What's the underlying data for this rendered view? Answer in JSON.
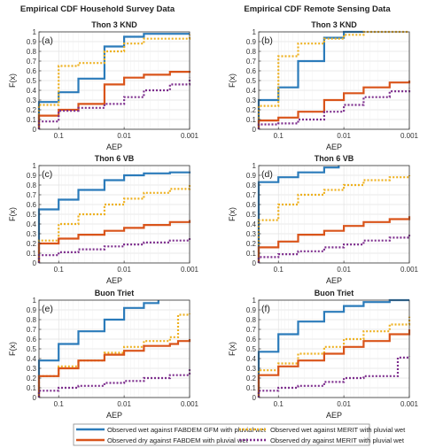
{
  "column_titles": [
    "Empirical CDF Household Survey Data",
    "Empirical CDF Remote Sensing Data"
  ],
  "colors": {
    "blue": "#2b7bba",
    "orange": "#d9541a",
    "yellow": "#eeb120",
    "purple": "#7e2f8e"
  },
  "legend": [
    {
      "label": "Observed wet against FABDEM GFM with pluvial wet",
      "color": "#2b7bba",
      "style": "solid"
    },
    {
      "label": "Observed wet against MERIT with pluvial wet",
      "color": "#eeb120",
      "style": "dotted"
    },
    {
      "label": "Observed dry against FABDEM with pluvial wet",
      "color": "#d9541a",
      "style": "solid"
    },
    {
      "label": "Observed dry against MERIT with pluvial wet",
      "color": "#7e2f8e",
      "style": "dotted"
    }
  ],
  "chart_data": [
    {
      "type": "line",
      "step": true,
      "panel": "(a)",
      "title": "Thon 3 KND",
      "column": 0,
      "row": 0,
      "xlabel": "AEP",
      "ylabel": "F(x)",
      "xscale": "log",
      "xreverse": true,
      "xlim": [
        0.2,
        0.001
      ],
      "ylim": [
        0,
        1
      ],
      "grid": true,
      "xticks": [
        0.1,
        0.01,
        0.001
      ],
      "xticklabels": [
        "0.1",
        "0.01",
        "0.001"
      ],
      "yticks": [
        0,
        0.1,
        0.2,
        0.3,
        0.4,
        0.5,
        0.6,
        0.7,
        0.8,
        0.9,
        1
      ],
      "yticklabels": [
        "0",
        "0.1",
        "0.2",
        "0.3",
        "0.4",
        "0.5",
        "0.6",
        "0.7",
        "0.8",
        "0.9",
        "1"
      ],
      "series": [
        {
          "name": "Observed wet against FABDEM GFM with pluvial wet",
          "color": "#2b7bba",
          "style": "solid",
          "x": [
            0.2,
            0.1,
            0.05,
            0.02,
            0.01,
            0.005,
            0.001
          ],
          "y": [
            0.28,
            0.38,
            0.52,
            0.85,
            0.95,
            0.98,
            0.98
          ]
        },
        {
          "name": "Observed wet against MERIT with pluvial wet",
          "color": "#eeb120",
          "style": "dotted",
          "x": [
            0.2,
            0.1,
            0.05,
            0.02,
            0.01,
            0.005,
            0.001
          ],
          "y": [
            0.25,
            0.65,
            0.68,
            0.8,
            0.88,
            0.93,
            0.97
          ]
        },
        {
          "name": "Observed dry against FABDEM with pluvial wet",
          "color": "#d9541a",
          "style": "solid",
          "x": [
            0.2,
            0.1,
            0.05,
            0.02,
            0.01,
            0.005,
            0.002,
            0.001
          ],
          "y": [
            0.14,
            0.2,
            0.26,
            0.46,
            0.53,
            0.56,
            0.59,
            0.6
          ]
        },
        {
          "name": "Observed dry against MERIT with pluvial wet",
          "color": "#7e2f8e",
          "style": "dotted",
          "x": [
            0.2,
            0.1,
            0.05,
            0.02,
            0.01,
            0.005,
            0.002,
            0.001
          ],
          "y": [
            0.08,
            0.19,
            0.22,
            0.26,
            0.33,
            0.4,
            0.46,
            0.53
          ]
        }
      ]
    },
    {
      "type": "line",
      "step": true,
      "panel": "(b)",
      "title": "Thon 3 KND",
      "column": 1,
      "row": 0,
      "xlabel": "AEP",
      "ylabel": "F(x)",
      "xscale": "log",
      "xreverse": true,
      "xlim": [
        0.2,
        0.001
      ],
      "ylim": [
        0,
        1
      ],
      "grid": true,
      "xticks": [
        0.1,
        0.01,
        0.001
      ],
      "xticklabels": [
        "0.1",
        "0.01",
        "0.001"
      ],
      "yticks": [
        0,
        0.1,
        0.2,
        0.3,
        0.4,
        0.5,
        0.6,
        0.7,
        0.8,
        0.9,
        1
      ],
      "yticklabels": [
        "0",
        "0.1",
        "0.2",
        "0.3",
        "0.4",
        "0.5",
        "0.6",
        "0.7",
        "0.8",
        "0.9",
        "1"
      ],
      "series": [
        {
          "name": "Observed wet against FABDEM GFM with pluvial wet",
          "color": "#2b7bba",
          "style": "solid",
          "x": [
            0.2,
            0.1,
            0.05,
            0.02,
            0.01,
            0.005
          ],
          "y": [
            0.3,
            0.43,
            0.7,
            0.94,
            1.0,
            1.0
          ]
        },
        {
          "name": "Observed wet against MERIT with pluvial wet",
          "color": "#eeb120",
          "style": "dotted",
          "x": [
            0.2,
            0.1,
            0.05,
            0.02,
            0.01,
            0.005,
            0.002,
            0.001
          ],
          "y": [
            0.24,
            0.75,
            0.88,
            0.93,
            0.97,
            1.0,
            1.0,
            1.0
          ]
        },
        {
          "name": "Observed dry against FABDEM with pluvial wet",
          "color": "#d9541a",
          "style": "solid",
          "x": [
            0.2,
            0.1,
            0.05,
            0.02,
            0.01,
            0.005,
            0.002,
            0.001
          ],
          "y": [
            0.09,
            0.12,
            0.18,
            0.3,
            0.37,
            0.43,
            0.48,
            0.5
          ]
        },
        {
          "name": "Observed dry against MERIT with pluvial wet",
          "color": "#7e2f8e",
          "style": "dotted",
          "x": [
            0.2,
            0.1,
            0.05,
            0.02,
            0.01,
            0.005,
            0.002,
            0.001
          ],
          "y": [
            0.05,
            0.06,
            0.1,
            0.18,
            0.25,
            0.33,
            0.39,
            0.42
          ]
        }
      ]
    },
    {
      "type": "line",
      "step": true,
      "panel": "(c)",
      "title": "Thon 6 VB",
      "column": 0,
      "row": 1,
      "xlabel": "AEP",
      "ylabel": "F(x)",
      "xscale": "log",
      "xreverse": true,
      "xlim": [
        0.2,
        0.001
      ],
      "ylim": [
        0,
        1
      ],
      "grid": true,
      "xticks": [
        0.1,
        0.01,
        0.001
      ],
      "xticklabels": [
        "0.1",
        "0.01",
        "0.001"
      ],
      "yticks": [
        0,
        0.1,
        0.2,
        0.3,
        0.4,
        0.5,
        0.6,
        0.7,
        0.8,
        0.9,
        1
      ],
      "yticklabels": [
        "0",
        "0.1",
        "0.2",
        "0.3",
        "0.4",
        "0.5",
        "0.6",
        "0.7",
        "0.8",
        "0.9",
        "1"
      ],
      "series": [
        {
          "name": "Observed wet against FABDEM GFM with pluvial wet",
          "color": "#2b7bba",
          "style": "solid",
          "x": [
            0.2,
            0.1,
            0.05,
            0.02,
            0.01,
            0.005,
            0.002,
            0.001
          ],
          "y": [
            0.55,
            0.65,
            0.75,
            0.85,
            0.9,
            0.92,
            0.93,
            0.94
          ]
        },
        {
          "name": "Observed wet against MERIT with pluvial wet",
          "color": "#eeb120",
          "style": "dotted",
          "x": [
            0.2,
            0.1,
            0.05,
            0.02,
            0.01,
            0.005,
            0.002,
            0.001
          ],
          "y": [
            0.23,
            0.4,
            0.5,
            0.6,
            0.66,
            0.72,
            0.76,
            0.8
          ]
        },
        {
          "name": "Observed dry against FABDEM with pluvial wet",
          "color": "#d9541a",
          "style": "solid",
          "x": [
            0.2,
            0.1,
            0.05,
            0.02,
            0.01,
            0.005,
            0.002,
            0.001
          ],
          "y": [
            0.2,
            0.25,
            0.29,
            0.33,
            0.36,
            0.39,
            0.42,
            0.44
          ]
        },
        {
          "name": "Observed dry against MERIT with pluvial wet",
          "color": "#7e2f8e",
          "style": "dotted",
          "x": [
            0.2,
            0.1,
            0.05,
            0.02,
            0.01,
            0.005,
            0.002,
            0.001
          ],
          "y": [
            0.08,
            0.11,
            0.14,
            0.17,
            0.19,
            0.21,
            0.23,
            0.26
          ]
        }
      ]
    },
    {
      "type": "line",
      "step": true,
      "panel": "(d)",
      "title": "Thon 6 VB",
      "column": 1,
      "row": 1,
      "xlabel": "AEP",
      "ylabel": "F(x)",
      "xscale": "log",
      "xreverse": true,
      "xlim": [
        0.2,
        0.001
      ],
      "ylim": [
        0,
        1
      ],
      "grid": true,
      "xticks": [
        0.1,
        0.01,
        0.001
      ],
      "xticklabels": [
        "0.1",
        "0.01",
        "0.001"
      ],
      "yticks": [
        0,
        0.1,
        0.2,
        0.3,
        0.4,
        0.5,
        0.6,
        0.7,
        0.8,
        0.9,
        1
      ],
      "yticklabels": [
        "0",
        "0.1",
        "0.2",
        "0.3",
        "0.4",
        "0.5",
        "0.6",
        "0.7",
        "0.8",
        "0.9",
        "1"
      ],
      "series": [
        {
          "name": "Observed wet against FABDEM GFM with pluvial wet",
          "color": "#2b7bba",
          "style": "solid",
          "x": [
            0.2,
            0.1,
            0.05,
            0.02,
            0.012
          ],
          "y": [
            0.83,
            0.88,
            0.93,
            0.98,
            1.0
          ]
        },
        {
          "name": "Observed wet against MERIT with pluvial wet",
          "color": "#eeb120",
          "style": "dotted",
          "x": [
            0.2,
            0.1,
            0.05,
            0.02,
            0.01,
            0.005,
            0.002,
            0.001
          ],
          "y": [
            0.44,
            0.6,
            0.7,
            0.75,
            0.8,
            0.85,
            0.88,
            0.9
          ]
        },
        {
          "name": "Observed dry against FABDEM with pluvial wet",
          "color": "#d9541a",
          "style": "solid",
          "x": [
            0.2,
            0.1,
            0.05,
            0.02,
            0.01,
            0.005,
            0.002,
            0.001
          ],
          "y": [
            0.16,
            0.22,
            0.29,
            0.33,
            0.38,
            0.42,
            0.45,
            0.48
          ]
        },
        {
          "name": "Observed dry against MERIT with pluvial wet",
          "color": "#7e2f8e",
          "style": "dotted",
          "x": [
            0.2,
            0.1,
            0.05,
            0.02,
            0.01,
            0.005,
            0.002,
            0.001
          ],
          "y": [
            0.06,
            0.09,
            0.12,
            0.16,
            0.19,
            0.23,
            0.26,
            0.29
          ]
        }
      ]
    },
    {
      "type": "line",
      "step": true,
      "panel": "(e)",
      "title": "Buon Triet",
      "column": 0,
      "row": 2,
      "xlabel": "AEP",
      "ylabel": "F(x)",
      "xscale": "log",
      "xreverse": true,
      "xlim": [
        0.2,
        0.001
      ],
      "ylim": [
        0,
        1
      ],
      "grid": true,
      "xticks": [
        0.1,
        0.01,
        0.001
      ],
      "xticklabels": [
        "0.1",
        "0.01",
        "0.001"
      ],
      "yticks": [
        0,
        0.1,
        0.2,
        0.3,
        0.4,
        0.5,
        0.6,
        0.7,
        0.8,
        0.9,
        1
      ],
      "yticklabels": [
        "0",
        "0.1",
        "0.2",
        "0.3",
        "0.4",
        "0.5",
        "0.6",
        "0.7",
        "0.8",
        "0.9",
        "1"
      ],
      "series": [
        {
          "name": "Observed wet against FABDEM GFM with pluvial wet",
          "color": "#2b7bba",
          "style": "solid",
          "x": [
            0.2,
            0.1,
            0.05,
            0.02,
            0.01,
            0.005,
            0.003
          ],
          "y": [
            0.38,
            0.55,
            0.68,
            0.8,
            0.92,
            0.97,
            1.0
          ]
        },
        {
          "name": "Observed wet against MERIT with pluvial wet",
          "color": "#eeb120",
          "style": "dotted",
          "x": [
            0.2,
            0.1,
            0.05,
            0.02,
            0.01,
            0.005,
            0.002,
            0.0015,
            0.001
          ],
          "y": [
            0.22,
            0.32,
            0.38,
            0.46,
            0.52,
            0.58,
            0.62,
            0.85,
            0.86
          ]
        },
        {
          "name": "Observed dry against FABDEM with pluvial wet",
          "color": "#d9541a",
          "style": "solid",
          "x": [
            0.2,
            0.1,
            0.05,
            0.02,
            0.01,
            0.005,
            0.002,
            0.0015,
            0.001
          ],
          "y": [
            0.22,
            0.3,
            0.38,
            0.44,
            0.48,
            0.53,
            0.55,
            0.58,
            0.6
          ]
        },
        {
          "name": "Observed dry against MERIT with pluvial wet",
          "color": "#7e2f8e",
          "style": "dotted",
          "x": [
            0.2,
            0.1,
            0.05,
            0.02,
            0.01,
            0.005,
            0.002,
            0.001
          ],
          "y": [
            0.07,
            0.1,
            0.12,
            0.15,
            0.17,
            0.2,
            0.23,
            0.29
          ]
        }
      ]
    },
    {
      "type": "line",
      "step": true,
      "panel": "(f)",
      "title": "Buon Triet",
      "column": 1,
      "row": 2,
      "xlabel": "AEP",
      "ylabel": "F(x)",
      "xscale": "log",
      "xreverse": true,
      "xlim": [
        0.2,
        0.001
      ],
      "ylim": [
        0,
        1
      ],
      "grid": true,
      "xticks": [
        0.1,
        0.01,
        0.001
      ],
      "xticklabels": [
        "0.1",
        "0.01",
        "0.001"
      ],
      "yticks": [
        0,
        0.1,
        0.2,
        0.3,
        0.4,
        0.5,
        0.6,
        0.7,
        0.8,
        0.9,
        1
      ],
      "yticklabels": [
        "0",
        "0.1",
        "0.2",
        "0.3",
        "0.4",
        "0.5",
        "0.6",
        "0.7",
        "0.8",
        "0.9",
        "1"
      ],
      "series": [
        {
          "name": "Observed wet against FABDEM GFM with pluvial wet",
          "color": "#2b7bba",
          "style": "solid",
          "x": [
            0.2,
            0.1,
            0.05,
            0.02,
            0.01,
            0.005,
            0.002,
            0.001
          ],
          "y": [
            0.47,
            0.65,
            0.78,
            0.88,
            0.94,
            0.98,
            1.0,
            1.0
          ]
        },
        {
          "name": "Observed wet against MERIT with pluvial wet",
          "color": "#eeb120",
          "style": "dotted",
          "x": [
            0.2,
            0.1,
            0.05,
            0.02,
            0.01,
            0.005,
            0.002,
            0.001
          ],
          "y": [
            0.28,
            0.35,
            0.45,
            0.52,
            0.6,
            0.68,
            0.75,
            0.83
          ]
        },
        {
          "name": "Observed dry against FABDEM with pluvial wet",
          "color": "#d9541a",
          "style": "solid",
          "x": [
            0.2,
            0.1,
            0.05,
            0.02,
            0.01,
            0.005,
            0.002,
            0.001
          ],
          "y": [
            0.23,
            0.32,
            0.38,
            0.45,
            0.52,
            0.58,
            0.65,
            0.7
          ]
        },
        {
          "name": "Observed dry against MERIT with pluvial wet",
          "color": "#7e2f8e",
          "style": "dotted",
          "x": [
            0.2,
            0.1,
            0.05,
            0.02,
            0.01,
            0.005,
            0.0015,
            0.001
          ],
          "y": [
            0.07,
            0.1,
            0.12,
            0.16,
            0.2,
            0.22,
            0.41,
            0.42
          ]
        }
      ]
    }
  ]
}
